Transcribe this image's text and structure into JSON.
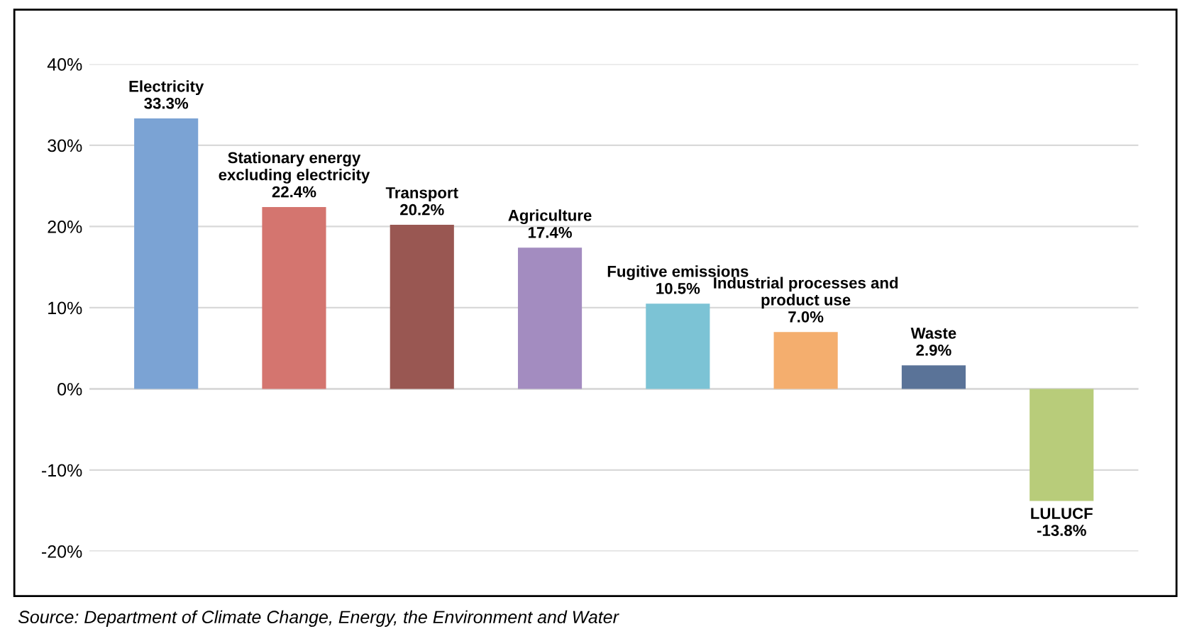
{
  "chart_data": {
    "type": "bar",
    "categories": [
      "Electricity",
      "Stationary energy\nexcluding electricity",
      "Transport",
      "Agriculture",
      "Fugitive emissions",
      "Industrial processes and\nproduct use",
      "Waste",
      "LULUCF"
    ],
    "values": [
      33.3,
      22.4,
      20.2,
      17.4,
      10.5,
      7.0,
      2.9,
      -13.8
    ],
    "value_labels": [
      "33.3%",
      "22.4%",
      "20.2%",
      "17.4%",
      "10.5%",
      "7.0%",
      "2.9%",
      "-13.8%"
    ],
    "colors": [
      "#7ba3d4",
      "#d4756f",
      "#995752",
      "#a38cc0",
      "#7cc3d5",
      "#f4ae6e",
      "#5a7398",
      "#b8cc7a"
    ],
    "ylim": [
      -20,
      40
    ],
    "yticks": [
      {
        "value": -20,
        "label": "-20%"
      },
      {
        "value": -10,
        "label": "-10%"
      },
      {
        "value": 0,
        "label": "0%"
      },
      {
        "value": 10,
        "label": "10%"
      },
      {
        "value": 20,
        "label": "20%"
      },
      {
        "value": 30,
        "label": "30%"
      },
      {
        "value": 40,
        "label": "40%"
      }
    ],
    "grid": "y",
    "legend": false,
    "annotations": [
      "Source: Department of Climate Change, Energy, the Environment and Water"
    ]
  }
}
